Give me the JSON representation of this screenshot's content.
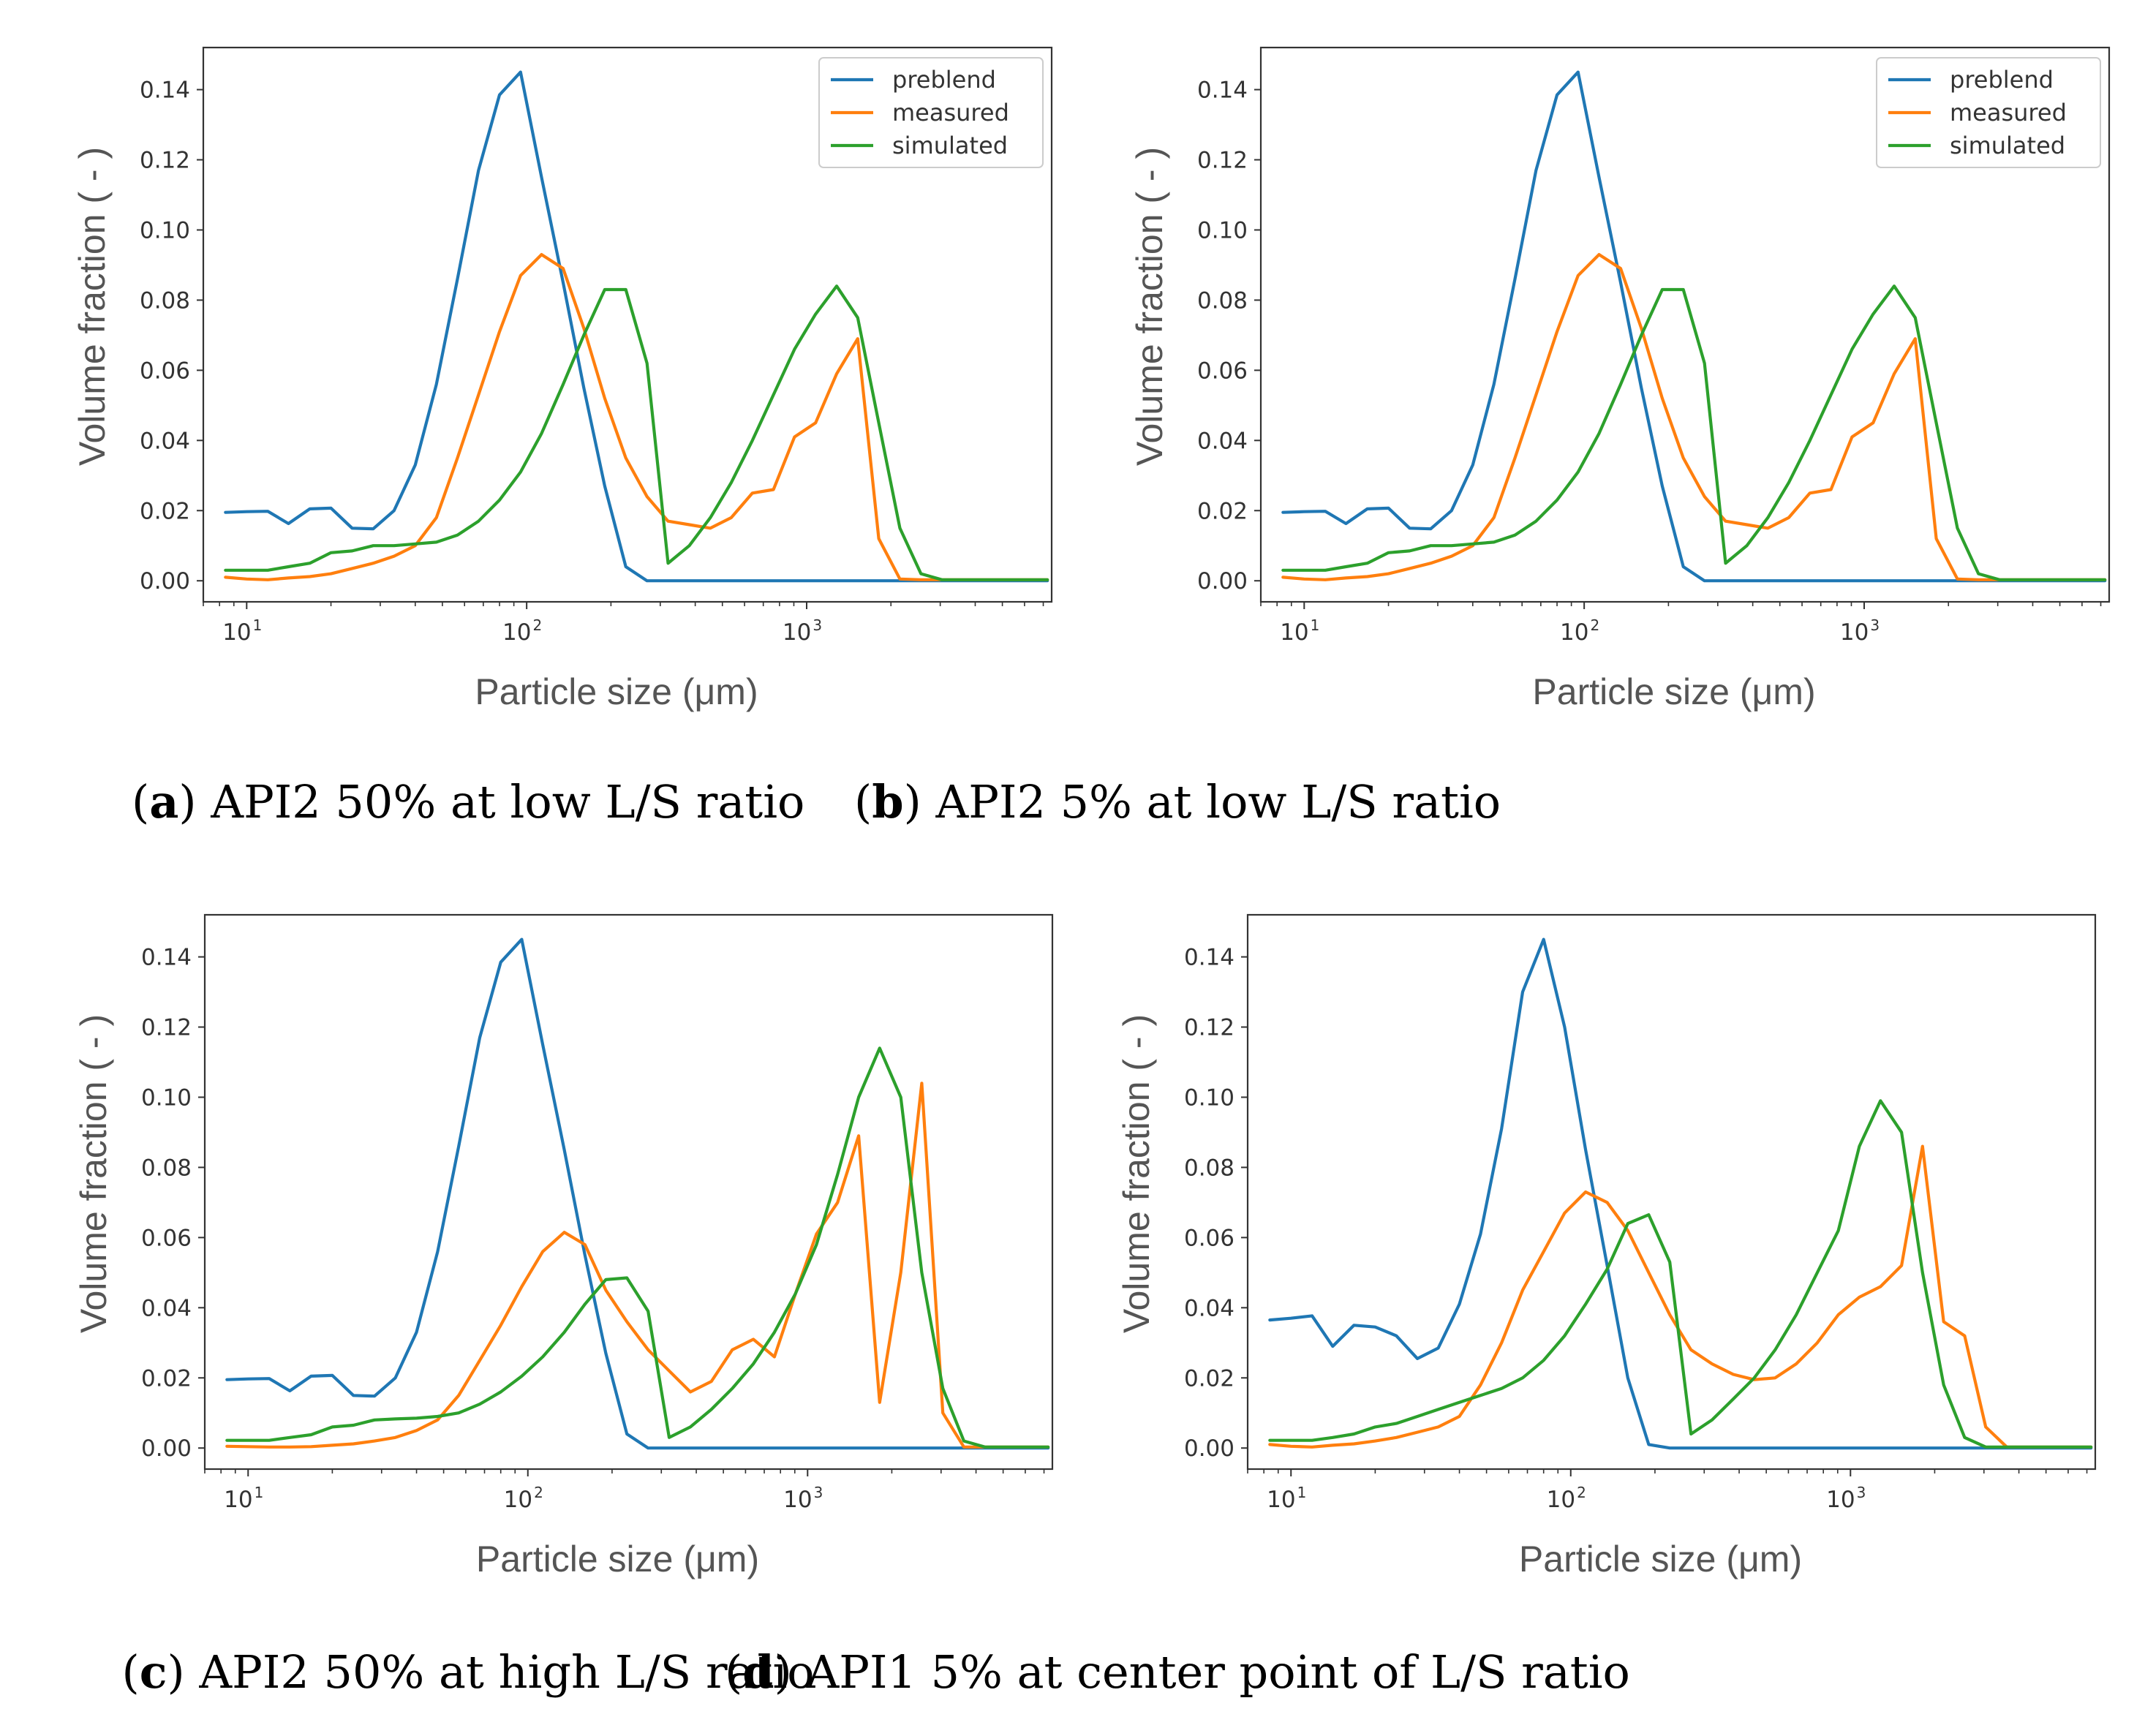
{
  "colors": {
    "preblend": "#1f77b4",
    "measured": "#ff7f0e",
    "simulated": "#2ca02c"
  },
  "chart_data": [
    {
      "id": "a",
      "type": "line",
      "caption_letter": "a",
      "caption_text": "API2 50% at low L/S ratio",
      "xlabel": "Particle size (μm)",
      "ylabel": "Volume fraction ( - )",
      "xscale": "log",
      "xlim": [
        7,
        7500
      ],
      "ylim": [
        -0.006,
        0.152
      ],
      "yticks": [
        "0.00",
        "0.02",
        "0.04",
        "0.06",
        "0.08",
        "0.10",
        "0.12",
        "0.14"
      ],
      "xticks": [
        {
          "base": "10",
          "exp": "1"
        },
        {
          "base": "10",
          "exp": "2"
        },
        {
          "base": "10",
          "exp": "3"
        }
      ],
      "legend": {
        "show": true,
        "position": "top-right",
        "entries": [
          "preblend",
          "measured",
          "simulated"
        ]
      },
      "x": [
        8.4,
        10,
        11.9,
        14.1,
        16.8,
        20,
        23.8,
        28.3,
        33.6,
        40,
        47.6,
        56.6,
        67.3,
        80,
        95.1,
        113,
        135,
        160,
        190,
        226,
        269,
        320,
        381,
        453,
        538,
        640,
        761,
        905,
        1076,
        1280,
        1522,
        1810,
        2153,
        2560,
        3044,
        3620,
        4305,
        5120,
        6089,
        7241
      ],
      "series": [
        {
          "name": "preblend",
          "values": [
            0.0195,
            0.0197,
            0.0198,
            0.0163,
            0.0205,
            0.0207,
            0.015,
            0.0148,
            0.02,
            0.033,
            0.056,
            0.086,
            0.117,
            0.1385,
            0.145,
            0.115,
            0.085,
            0.055,
            0.027,
            0.004,
            0,
            0,
            0,
            0,
            0,
            0,
            0,
            0,
            0,
            0,
            0,
            0,
            0,
            0,
            0,
            0,
            0,
            0,
            0,
            0
          ]
        },
        {
          "name": "measured",
          "values": [
            0.001,
            0.0005,
            0.0003,
            0.0008,
            0.0012,
            0.002,
            0.0035,
            0.005,
            0.007,
            0.01,
            0.018,
            0.035,
            0.053,
            0.071,
            0.087,
            0.093,
            0.089,
            0.072,
            0.052,
            0.035,
            0.024,
            0.017,
            0.016,
            0.015,
            0.018,
            0.025,
            0.026,
            0.041,
            0.045,
            0.059,
            0.069,
            0.012,
            0.0005,
            0.0003,
            0.0003,
            0.0003,
            0.0003,
            0.0003,
            0.0003,
            0.0003
          ]
        },
        {
          "name": "simulated",
          "values": [
            0.003,
            0.003,
            0.003,
            0.004,
            0.005,
            0.008,
            0.0085,
            0.01,
            0.01,
            0.0105,
            0.011,
            0.013,
            0.017,
            0.023,
            0.031,
            0.042,
            0.056,
            0.07,
            0.083,
            0.083,
            0.062,
            0.005,
            0.01,
            0.018,
            0.028,
            0.04,
            0.053,
            0.066,
            0.076,
            0.084,
            0.075,
            0.045,
            0.015,
            0.002,
            0.0003,
            0.0003,
            0.0003,
            0.0003,
            0.0003,
            0.0003
          ]
        }
      ]
    },
    {
      "id": "b",
      "type": "line",
      "caption_letter": "b",
      "caption_text": "API2 5% at low L/S ratio",
      "xlabel": "Particle size (μm)",
      "ylabel": "Volume fraction ( - )",
      "xscale": "log",
      "xlim": [
        7,
        7500
      ],
      "ylim": [
        -0.006,
        0.152
      ],
      "yticks": [
        "0.00",
        "0.02",
        "0.04",
        "0.06",
        "0.08",
        "0.10",
        "0.12",
        "0.14"
      ],
      "xticks": [
        {
          "base": "10",
          "exp": "1"
        },
        {
          "base": "10",
          "exp": "2"
        },
        {
          "base": "10",
          "exp": "3"
        }
      ],
      "legend": {
        "show": true,
        "position": "top-right",
        "entries": [
          "preblend",
          "measured",
          "simulated"
        ]
      },
      "x": [
        8.4,
        10,
        11.9,
        14.1,
        16.8,
        20,
        23.8,
        28.3,
        33.6,
        40,
        47.6,
        56.6,
        67.3,
        80,
        95.1,
        113,
        135,
        160,
        190,
        226,
        269,
        320,
        381,
        453,
        538,
        640,
        761,
        905,
        1076,
        1280,
        1522,
        1810,
        2153,
        2560,
        3044,
        3620,
        4305,
        5120,
        6089,
        7241
      ],
      "series": [
        {
          "name": "preblend",
          "values": [
            0.0195,
            0.0197,
            0.0198,
            0.0163,
            0.0205,
            0.0207,
            0.015,
            0.0148,
            0.02,
            0.033,
            0.056,
            0.086,
            0.117,
            0.1385,
            0.145,
            0.115,
            0.085,
            0.055,
            0.027,
            0.004,
            0,
            0,
            0,
            0,
            0,
            0,
            0,
            0,
            0,
            0,
            0,
            0,
            0,
            0,
            0,
            0,
            0,
            0,
            0,
            0
          ]
        },
        {
          "name": "measured",
          "values": [
            0.001,
            0.0005,
            0.0003,
            0.0008,
            0.0012,
            0.002,
            0.0035,
            0.005,
            0.007,
            0.01,
            0.018,
            0.035,
            0.053,
            0.071,
            0.087,
            0.093,
            0.089,
            0.072,
            0.052,
            0.035,
            0.024,
            0.017,
            0.016,
            0.015,
            0.018,
            0.025,
            0.026,
            0.041,
            0.045,
            0.059,
            0.069,
            0.012,
            0.0005,
            0.0003,
            0.0003,
            0.0003,
            0.0003,
            0.0003,
            0.0003,
            0.0003
          ]
        },
        {
          "name": "simulated",
          "values": [
            0.003,
            0.003,
            0.003,
            0.004,
            0.005,
            0.008,
            0.0085,
            0.01,
            0.01,
            0.0105,
            0.011,
            0.013,
            0.017,
            0.023,
            0.031,
            0.042,
            0.056,
            0.07,
            0.083,
            0.083,
            0.062,
            0.005,
            0.01,
            0.018,
            0.028,
            0.04,
            0.053,
            0.066,
            0.076,
            0.084,
            0.075,
            0.045,
            0.015,
            0.002,
            0.0003,
            0.0003,
            0.0003,
            0.0003,
            0.0003,
            0.0003
          ]
        }
      ]
    },
    {
      "id": "c",
      "type": "line",
      "caption_letter": "c",
      "caption_text": "API2 50% at high L/S ratio",
      "xlabel": "Particle size (μm)",
      "ylabel": "Volume fraction ( - )",
      "xscale": "log",
      "xlim": [
        7,
        7500
      ],
      "ylim": [
        -0.006,
        0.152
      ],
      "yticks": [
        "0.00",
        "0.02",
        "0.04",
        "0.06",
        "0.08",
        "0.10",
        "0.12",
        "0.14"
      ],
      "xticks": [
        {
          "base": "10",
          "exp": "1"
        },
        {
          "base": "10",
          "exp": "2"
        },
        {
          "base": "10",
          "exp": "3"
        }
      ],
      "legend": {
        "show": false
      },
      "x": [
        8.4,
        10,
        11.9,
        14.1,
        16.8,
        20,
        23.8,
        28.3,
        33.6,
        40,
        47.6,
        56.6,
        67.3,
        80,
        95.1,
        113,
        135,
        160,
        190,
        226,
        269,
        320,
        381,
        453,
        538,
        640,
        761,
        905,
        1076,
        1280,
        1522,
        1810,
        2153,
        2560,
        3044,
        3620,
        4305,
        5120,
        6089,
        7241
      ],
      "series": [
        {
          "name": "preblend",
          "values": [
            0.0195,
            0.0197,
            0.0198,
            0.0163,
            0.0205,
            0.0207,
            0.015,
            0.0148,
            0.02,
            0.033,
            0.056,
            0.086,
            0.117,
            0.1385,
            0.145,
            0.115,
            0.085,
            0.055,
            0.027,
            0.004,
            0,
            0,
            0,
            0,
            0,
            0,
            0,
            0,
            0,
            0,
            0,
            0,
            0,
            0,
            0,
            0,
            0,
            0,
            0,
            0
          ]
        },
        {
          "name": "measured",
          "values": [
            0.0005,
            0.0004,
            0.0003,
            0.0003,
            0.0004,
            0.0008,
            0.0012,
            0.002,
            0.003,
            0.005,
            0.008,
            0.015,
            0.025,
            0.035,
            0.046,
            0.056,
            0.0615,
            0.058,
            0.045,
            0.036,
            0.028,
            0.022,
            0.016,
            0.019,
            0.028,
            0.031,
            0.026,
            0.044,
            0.061,
            0.07,
            0.089,
            0.013,
            0.05,
            0.104,
            0.01,
            0.0003,
            0.0003,
            0.0003,
            0.0003,
            0.0003
          ]
        },
        {
          "name": "simulated",
          "values": [
            0.0022,
            0.0022,
            0.0022,
            0.003,
            0.0038,
            0.006,
            0.0065,
            0.008,
            0.0083,
            0.0085,
            0.009,
            0.01,
            0.0125,
            0.016,
            0.0205,
            0.026,
            0.033,
            0.041,
            0.048,
            0.0485,
            0.039,
            0.003,
            0.006,
            0.011,
            0.017,
            0.024,
            0.033,
            0.044,
            0.058,
            0.078,
            0.1,
            0.114,
            0.1,
            0.05,
            0.017,
            0.002,
            0.0003,
            0.0003,
            0.0003,
            0.0003
          ]
        }
      ]
    },
    {
      "id": "d",
      "type": "line",
      "caption_letter": "d",
      "caption_text": "API1 5% at center point of L/S ratio",
      "xlabel": "Particle size (μm)",
      "ylabel": "Volume fraction ( - )",
      "xscale": "log",
      "xlim": [
        7,
        7500
      ],
      "ylim": [
        -0.006,
        0.152
      ],
      "yticks": [
        "0.00",
        "0.02",
        "0.04",
        "0.06",
        "0.08",
        "0.10",
        "0.12",
        "0.14"
      ],
      "xticks": [
        {
          "base": "10",
          "exp": "1"
        },
        {
          "base": "10",
          "exp": "2"
        },
        {
          "base": "10",
          "exp": "3"
        }
      ],
      "legend": {
        "show": false
      },
      "x": [
        8.4,
        10,
        11.9,
        14.1,
        16.8,
        20,
        23.8,
        28.3,
        33.6,
        40,
        47.6,
        56.6,
        67.3,
        80,
        95.1,
        113,
        135,
        160,
        190,
        226,
        269,
        320,
        381,
        453,
        538,
        640,
        761,
        905,
        1076,
        1280,
        1522,
        1810,
        2153,
        2560,
        3044,
        3620,
        4305,
        5120,
        6089,
        7241
      ],
      "series": [
        {
          "name": "preblend",
          "values": [
            0.0365,
            0.037,
            0.0377,
            0.029,
            0.035,
            0.0345,
            0.032,
            0.0255,
            0.0285,
            0.041,
            0.061,
            0.091,
            0.13,
            0.145,
            0.12,
            0.085,
            0.052,
            0.02,
            0.001,
            0,
            0,
            0,
            0,
            0,
            0,
            0,
            0,
            0,
            0,
            0,
            0,
            0,
            0,
            0,
            0,
            0,
            0,
            0,
            0,
            0
          ]
        },
        {
          "name": "measured",
          "values": [
            0.001,
            0.0005,
            0.0003,
            0.0008,
            0.0012,
            0.002,
            0.003,
            0.0045,
            0.006,
            0.009,
            0.018,
            0.03,
            0.045,
            0.056,
            0.067,
            0.073,
            0.07,
            0.062,
            0.05,
            0.038,
            0.028,
            0.024,
            0.021,
            0.0195,
            0.02,
            0.024,
            0.03,
            0.038,
            0.043,
            0.046,
            0.052,
            0.086,
            0.036,
            0.032,
            0.006,
            0.0003,
            0.0003,
            0.0003,
            0.0003,
            0.0003
          ]
        },
        {
          "name": "simulated",
          "values": [
            0.0022,
            0.0022,
            0.0022,
            0.003,
            0.004,
            0.006,
            0.007,
            0.009,
            0.011,
            0.013,
            0.015,
            0.017,
            0.02,
            0.025,
            0.032,
            0.041,
            0.051,
            0.064,
            0.0665,
            0.053,
            0.004,
            0.008,
            0.014,
            0.02,
            0.028,
            0.038,
            0.05,
            0.062,
            0.086,
            0.099,
            0.09,
            0.05,
            0.018,
            0.003,
            0.0003,
            0.0003,
            0.0003,
            0.0003,
            0.0003,
            0.0003
          ]
        }
      ]
    }
  ]
}
